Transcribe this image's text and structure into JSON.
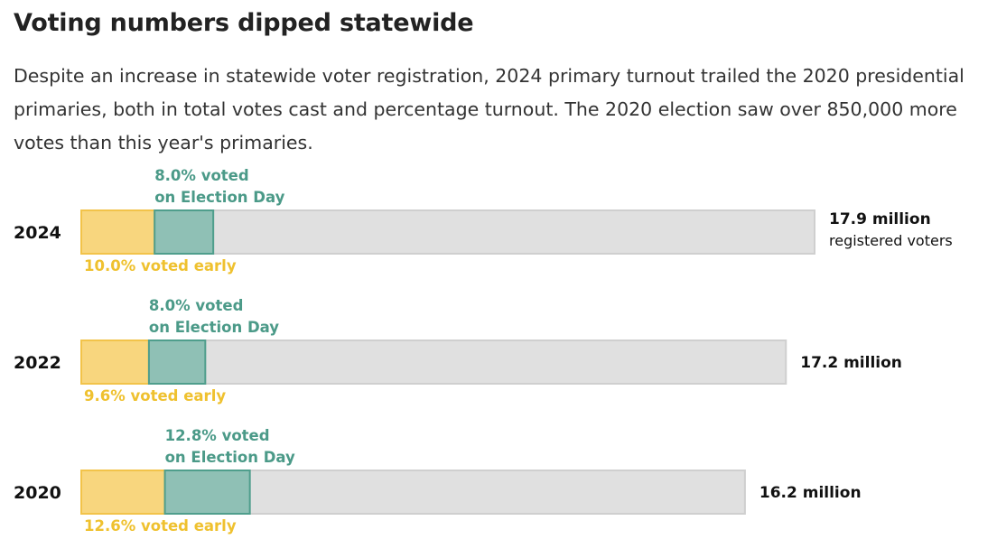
{
  "title": "Voting numbers dipped statewide",
  "subtitle": "Despite an increase in statewide voter registration, 2024 primary turnout trailed the 2020 presidential primaries, both in total votes cast and percentage turnout. The 2020 election saw over 850,000 more votes than this year's primaries.",
  "colors": {
    "early_fill": "#f8d67e",
    "early_stroke": "#f2c34a",
    "early_text": "#efc12f",
    "eday_fill": "#8fc0b5",
    "eday_stroke": "#4f9e8c",
    "eday_text": "#4b9a88",
    "registered_fill": "#e0e0e0",
    "registered_stroke": "#cfcfcf"
  },
  "chart_data": {
    "type": "bar",
    "orientation": "horizontal",
    "stacked": true,
    "units": "millions of registered voters",
    "categories": [
      "2024",
      "2022",
      "2020"
    ],
    "registered_voters_millions": [
      17.9,
      17.2,
      16.2
    ],
    "registered_labels": [
      "17.9 million",
      "17.2 million",
      "16.2 million"
    ],
    "registered_sublabels": [
      "registered voters",
      "",
      ""
    ],
    "series": [
      {
        "name": "voted early",
        "percent": [
          10.0,
          9.6,
          12.6
        ],
        "labels": [
          "10.0% voted early",
          "9.6% voted early",
          "12.6% voted early"
        ]
      },
      {
        "name": "voted on Election Day",
        "percent": [
          8.0,
          8.0,
          12.8
        ],
        "labels_line1": [
          "8.0% voted",
          "8.0% voted",
          "12.8% voted"
        ],
        "labels_line2": [
          "on Election Day",
          "on Election Day",
          "on Election Day"
        ]
      }
    ],
    "xlim": [
      0,
      17.9
    ],
    "grid": false,
    "legend": "none"
  }
}
